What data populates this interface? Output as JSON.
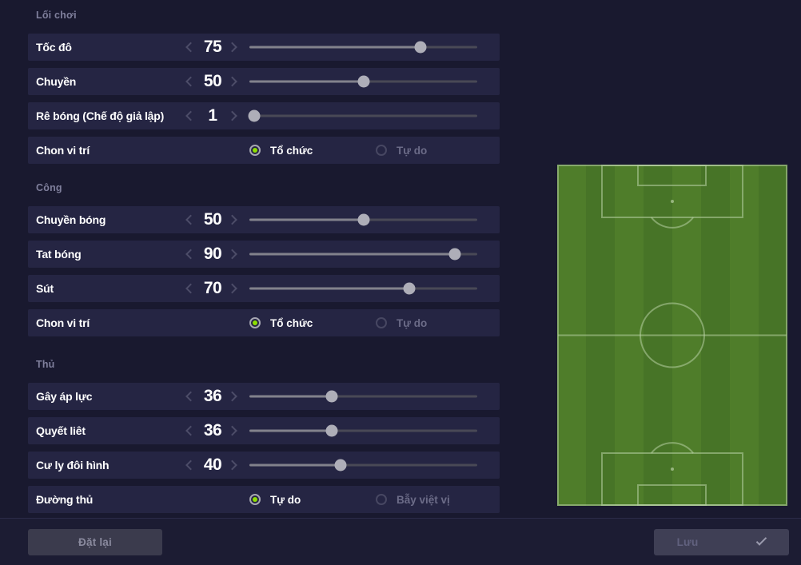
{
  "colors": {
    "background": "#19192f",
    "row_background": "#252543",
    "accent_green": "#8ddf00",
    "slider_track": "#494956",
    "slider_fill": "#82828c",
    "slider_thumb": "#aeaeb8",
    "pitch_stripe_dark": "#477427",
    "pitch_stripe_light": "#4f7d2a",
    "pitch_line": "#b7cfa2"
  },
  "sections": [
    {
      "title": "Lối chơi",
      "rows": [
        {
          "type": "slider",
          "label": "Tốc đô",
          "value": "75",
          "pct": 75
        },
        {
          "type": "slider",
          "label": "Chuyền",
          "value": "50",
          "pct": 50
        },
        {
          "type": "slider",
          "label": "Rê bóng (Chế độ giả lập)",
          "value": "1",
          "pct": 2
        },
        {
          "type": "radio",
          "label": "Chon vi trí",
          "options": [
            {
              "label": "Tổ chức",
              "selected": true
            },
            {
              "label": "Tự do",
              "selected": false
            }
          ]
        }
      ]
    },
    {
      "title": "Công",
      "rows": [
        {
          "type": "slider",
          "label": "Chuyền bóng",
          "value": "50",
          "pct": 50
        },
        {
          "type": "slider",
          "label": "Tat bóng",
          "value": "90",
          "pct": 90
        },
        {
          "type": "slider",
          "label": "Sút",
          "value": "70",
          "pct": 70
        },
        {
          "type": "radio",
          "label": "Chon vi trí",
          "options": [
            {
              "label": "Tổ chức",
              "selected": true
            },
            {
              "label": "Tự do",
              "selected": false
            }
          ]
        }
      ]
    },
    {
      "title": "Thủ",
      "rows": [
        {
          "type": "slider",
          "label": "Gây áp lực",
          "value": "36",
          "pct": 36
        },
        {
          "type": "slider",
          "label": "Quyết liêt",
          "value": "36",
          "pct": 36
        },
        {
          "type": "slider",
          "label": "Cư ly đôi hình",
          "value": "40",
          "pct": 40
        },
        {
          "type": "radio",
          "label": "Đường thủ",
          "options": [
            {
              "label": "Tự do",
              "selected": true
            },
            {
              "label": "Bẫy việt vị",
              "selected": false
            }
          ]
        }
      ]
    }
  ],
  "footer": {
    "reset": "Đặt lại",
    "save": "Lưu",
    "save_icon": "checkmark"
  }
}
